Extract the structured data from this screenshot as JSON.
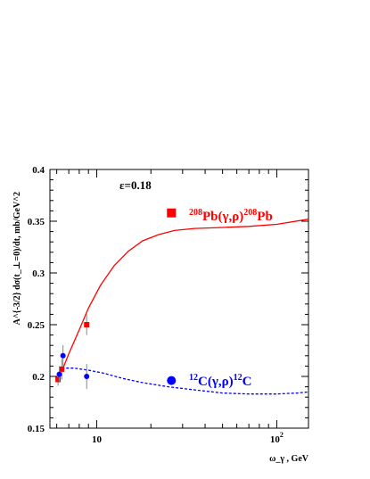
{
  "chart_data": {
    "type": "scatter",
    "title": "",
    "xlabel": "ω_γ , GeV",
    "ylabel": "A^{-3/2} dσ(t_⊥=0)/dt, mb/GeV^2",
    "xscale": "log",
    "xlim": [
      5.5,
      150
    ],
    "ylim": [
      0.15,
      0.4
    ],
    "grid": false,
    "yticks": [
      "0.15",
      "0.2",
      "0.25",
      "0.3",
      "0.35",
      "0.4"
    ],
    "xtick_labels": [
      {
        "value": 10,
        "base": "10",
        "exp": ""
      },
      {
        "value": 100,
        "base": "10",
        "exp": "2"
      }
    ],
    "annotations": {
      "epsilon": "ε=0.18",
      "pb": {
        "pre": "208",
        "a": "Pb(γ,ρ)",
        "b": "208",
        "c": "Pb"
      },
      "c": {
        "pre": "12",
        "a": "C(γ,ρ)",
        "b": "12",
        "c": "C"
      }
    },
    "colors": {
      "pb": "#ff0000",
      "c": "#0000ff"
    },
    "series": [
      {
        "marker": "square",
        "color": "#ff0000",
        "points": [
          {
            "x": 6.1,
            "y": 0.197,
            "err": 0.006
          },
          {
            "x": 6.4,
            "y": 0.207,
            "err": 0.01
          },
          {
            "x": 8.8,
            "y": 0.25,
            "err": 0.01
          }
        ],
        "legend_marker_at": {
          "x": 26,
          "y": 0.358
        }
      },
      {
        "marker": "circle",
        "color": "#0000ff",
        "points": [
          {
            "x": 6.2,
            "y": 0.202,
            "err": 0.008
          },
          {
            "x": 6.5,
            "y": 0.22,
            "err": 0.01
          },
          {
            "x": 8.8,
            "y": 0.2,
            "err": 0.012
          }
        ],
        "legend_marker_at": {
          "x": 26,
          "y": 0.196
        }
      }
    ],
    "curves": [
      {
        "style": "solid",
        "color": "#ff0000",
        "x": [
          6.4,
          7.0,
          8.0,
          9.0,
          10.5,
          12.5,
          15,
          18,
          22,
          27,
          35,
          50,
          70,
          100,
          150
        ],
        "y": [
          0.205,
          0.222,
          0.245,
          0.266,
          0.288,
          0.307,
          0.321,
          0.331,
          0.337,
          0.341,
          0.343,
          0.344,
          0.345,
          0.347,
          0.352
        ]
      },
      {
        "style": "dashed",
        "color": "#0000ff",
        "x": [
          6.4,
          7.5,
          9.0,
          11,
          14,
          18,
          25,
          35,
          50,
          70,
          100,
          130,
          150
        ],
        "y": [
          0.208,
          0.208,
          0.206,
          0.203,
          0.198,
          0.194,
          0.19,
          0.187,
          0.184,
          0.183,
          0.183,
          0.184,
          0.185
        ]
      }
    ]
  }
}
